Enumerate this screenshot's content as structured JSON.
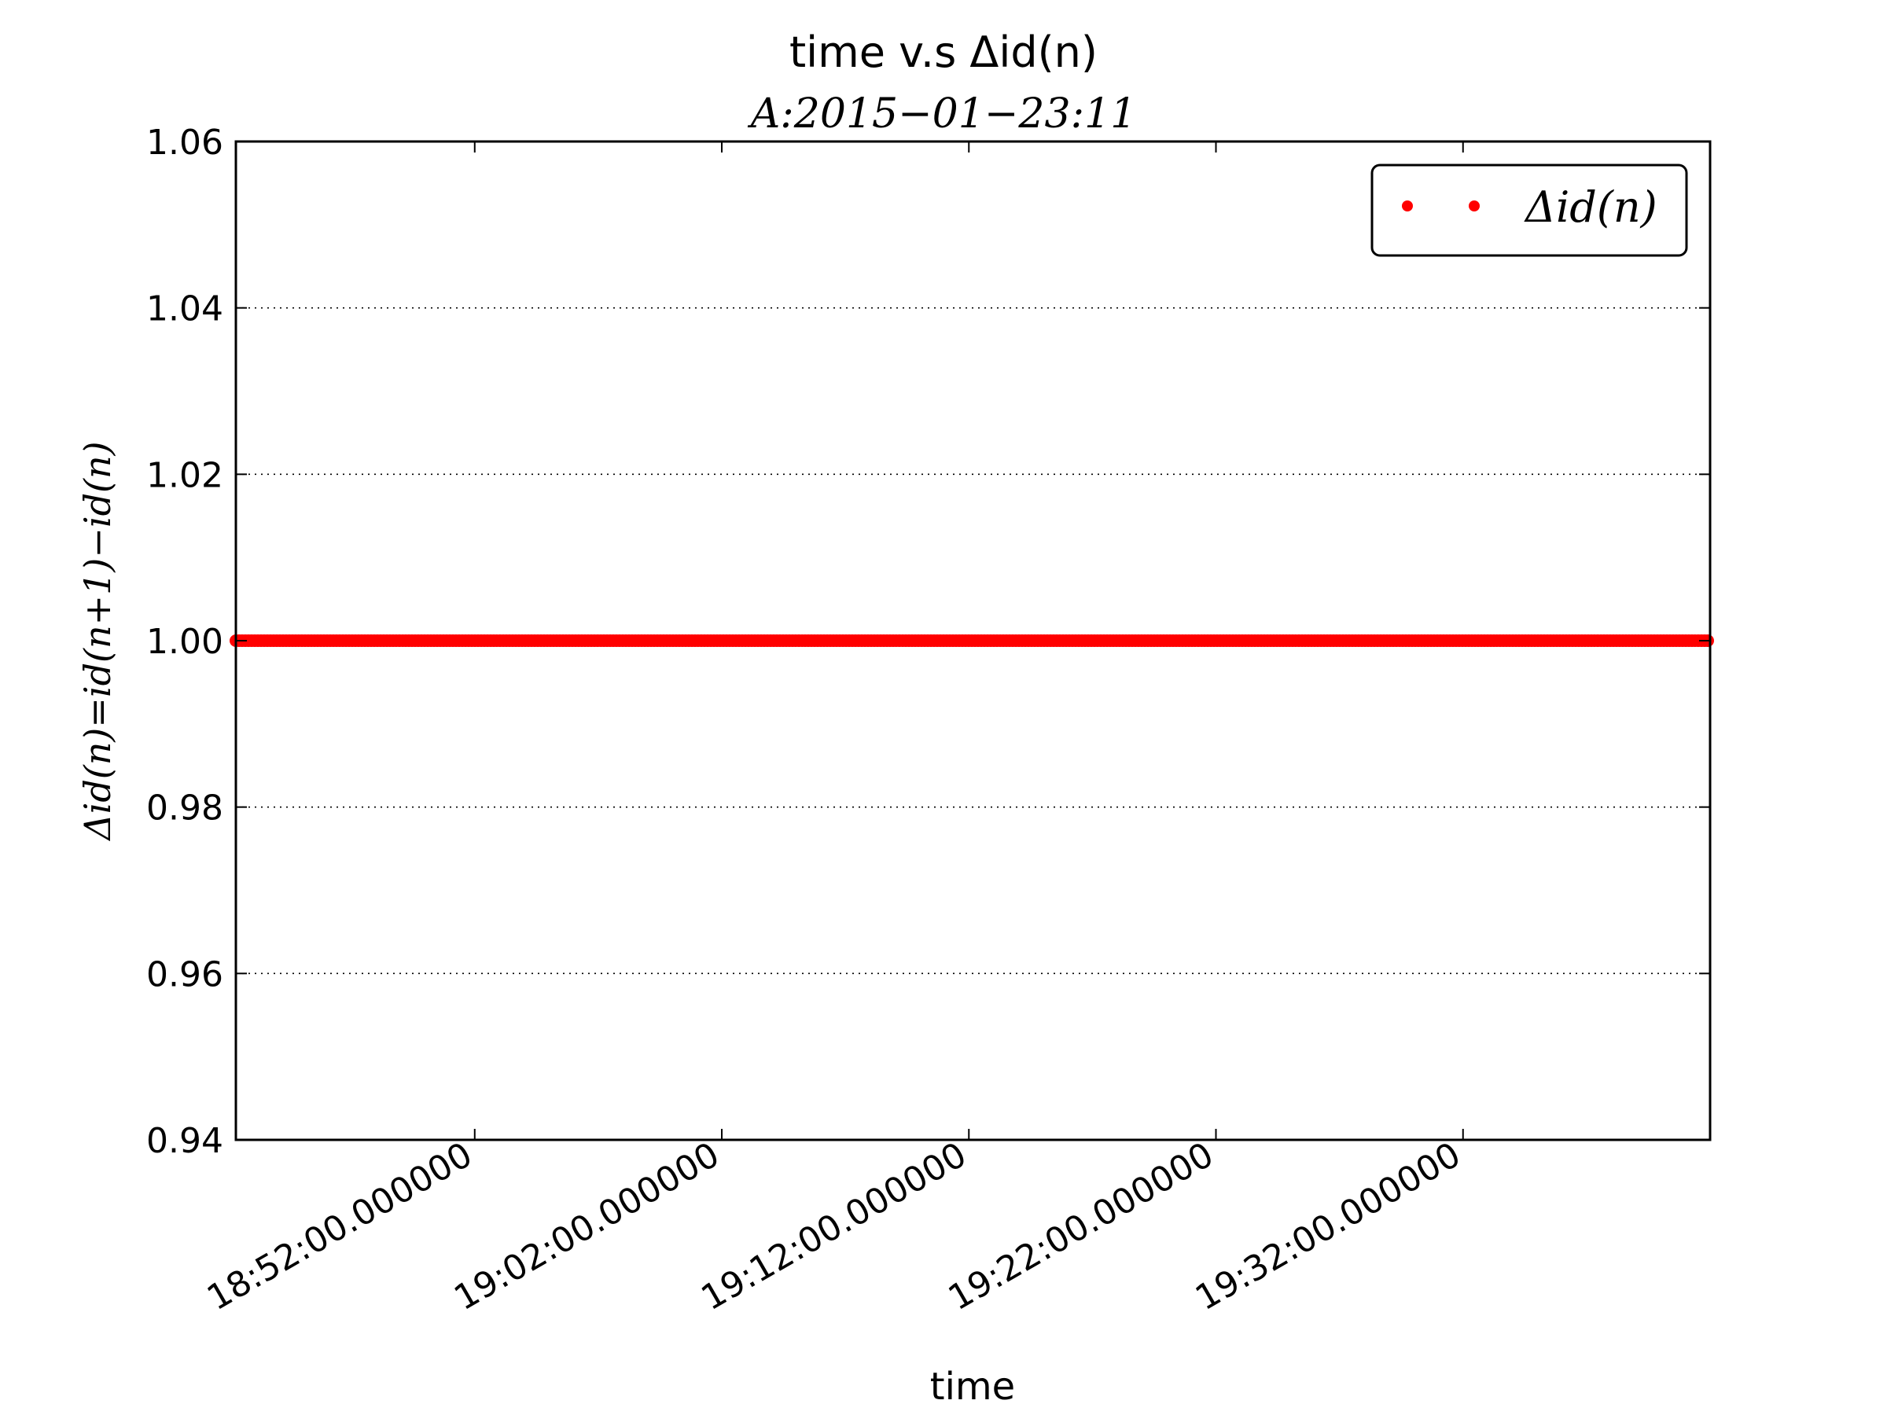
{
  "chart_data": {
    "type": "scatter",
    "title": "time v.s Δid(n)",
    "subtitle": "A:2015−01−23:11",
    "xlabel": "time",
    "ylabel": "Δid(n)=id(n+1)−id(n)",
    "ylim": [
      0.94,
      1.06
    ],
    "yticks": [
      "0.94",
      "0.96",
      "0.98",
      "1.00",
      "1.02",
      "1.04",
      "1.06"
    ],
    "xlim": [
      "18:42:20",
      "19:42:00"
    ],
    "xticks": [
      {
        "time": "18:52:00",
        "label": "18:52:00.000000"
      },
      {
        "time": "19:02:00",
        "label": "19:02:00.000000"
      },
      {
        "time": "19:12:00",
        "label": "19:12:00.000000"
      },
      {
        "time": "19:22:00",
        "label": "19:22:00.000000"
      },
      {
        "time": "19:32:00",
        "label": "19:32:00.000000"
      }
    ],
    "grid": "y-major-dotted",
    "legend": {
      "position": "top-right",
      "entries": [
        "Δid(n)"
      ]
    },
    "series": [
      {
        "name": "Δid(n)",
        "color": "#ff0000",
        "marker": "dot",
        "x_range": [
          "18:42:20",
          "19:42:00"
        ],
        "y": 1.0,
        "description_value": "constant"
      }
    ]
  }
}
